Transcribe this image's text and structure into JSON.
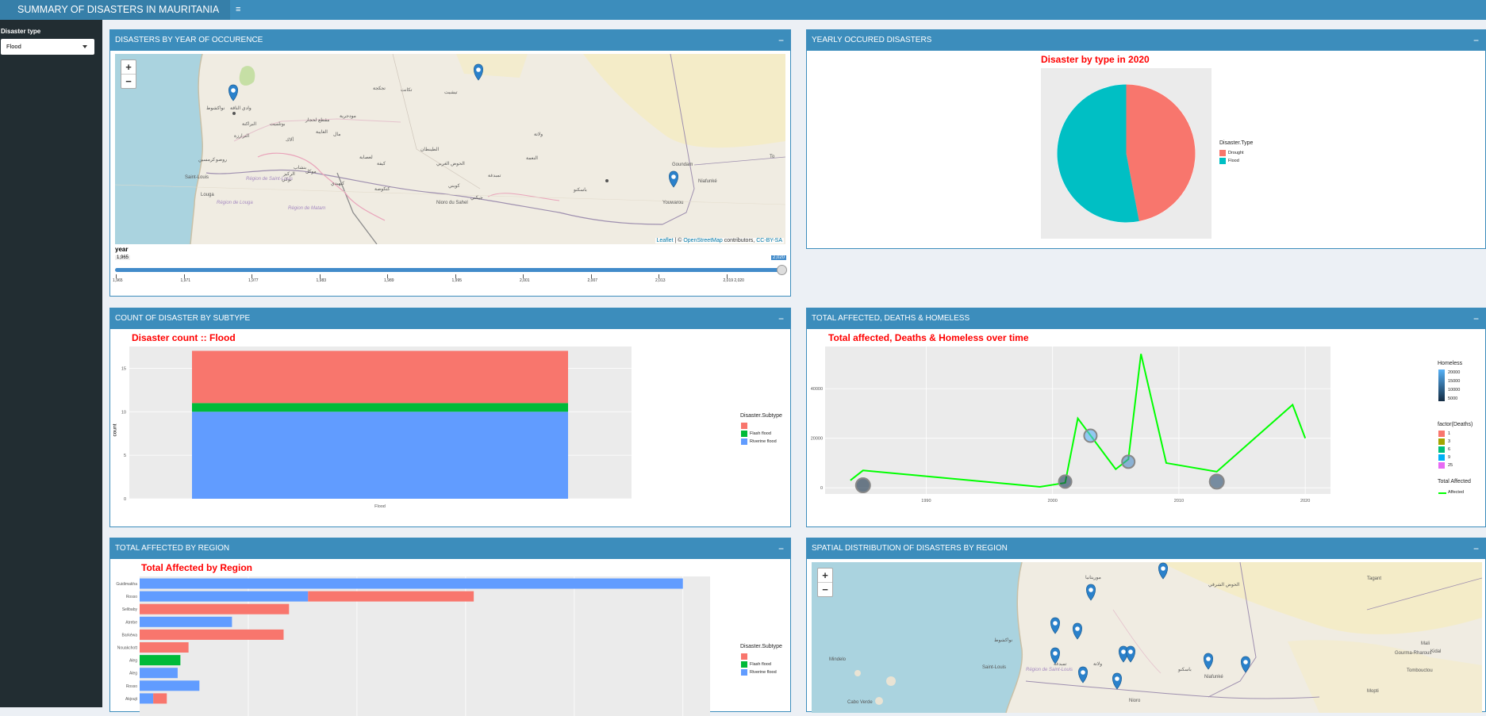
{
  "header": {
    "title": "SUMMARY OF DISASTERS IN MAURITANIA",
    "menu_icon": "≡"
  },
  "sidebar": {
    "filter_label": "Disaster type",
    "filter_value": "Flood"
  },
  "boxes": {
    "map_year": "DISASTERS BY YEAR OF OCCURENCE",
    "yearly": "YEARLY OCCURED DISASTERS",
    "subtype": "COUNT OF DISASTER BY SUBTYPE",
    "affected": "TOTAL AFFECTED, DEATHS & HOMELESS",
    "region": "TOTAL AFFECTED BY REGION",
    "spatial": "SPATIAL DISTRIBUTION OF DISASTERS BY REGION",
    "minimize": "−"
  },
  "map_year": {
    "zoom_in": "+",
    "zoom_out": "−",
    "attribution_leaflet": "Leaflet",
    "attribution_sep": " | © ",
    "attribution_osm": "OpenStreetMap",
    "attribution_rest": " contributors, ",
    "attribution_cc": "CC-BY-SA",
    "places": [
      "نواكشوط",
      "وادي الناقة",
      "البراكنة",
      "الترارزة",
      "مقطع لحجار",
      "ألاك",
      "كرمسين",
      "روصو",
      "بوتلميت",
      "الغايبة",
      "بنشاب",
      "تيشيت",
      "تكانت",
      "تجكجة",
      "مودجرية",
      "الركيز",
      "مال",
      "موكل",
      "بوكي",
      "كيهيدي",
      "لعصابة",
      "كيفة",
      "كنكوصة",
      "الطينطان",
      "الحوض الغربي",
      "تمبدغة",
      "جيكني",
      "كوبني",
      "النعمة",
      "ولاتة",
      "باسكنو",
      "Saint-Louis",
      "Région de Saint-Louis",
      "Louga",
      "Région de Louga",
      "Région de Matam",
      "Goundam",
      "Niafunké",
      "Youwarou",
      "Nioro du Sahel",
      "To"
    ],
    "slider_label": "year",
    "slider_min": "1,965",
    "slider_max": "2,020",
    "slider_ticks": [
      "1,965",
      "1,971",
      "1,977",
      "1,983",
      "1,989",
      "1,995",
      "2,001",
      "2,007",
      "2,013",
      "2,019 2,020"
    ]
  },
  "pie": {
    "title": "Disaster by type in 2020",
    "legend_title": "Disaster.Type",
    "legend_items": [
      "Drought",
      "Flood"
    ]
  },
  "subtype_chart": {
    "title": "Disaster count :: Flood",
    "ylabel": "count",
    "xtick": "Flood",
    "yticks": [
      "0",
      "5",
      "10",
      "15"
    ],
    "legend_title": "Disaster.Subtype",
    "legend_items": [
      "",
      "Flash flood",
      "Riverine flood"
    ]
  },
  "line_chart": {
    "title": "Total affected, Deaths & Homeless over time",
    "yticks": [
      "0",
      "20000",
      "40000"
    ],
    "xticks": [
      "1990",
      "2000",
      "2010",
      "2020"
    ],
    "legend_homeless_title": "Homeless",
    "legend_homeless_items": [
      "20000",
      "15000",
      "10000",
      "5000"
    ],
    "legend_deaths_title": "factor(Deaths)",
    "legend_deaths_items": [
      "1",
      "3",
      "6",
      "9",
      "25"
    ],
    "legend_affected_title": "Total Affected",
    "legend_affected_item": "Affected"
  },
  "region_chart": {
    "title": "Total Affected by Region",
    "legend_title": "Disaster.Subtype",
    "legend_items": [
      "",
      "Flash flood",
      "Riverine flood"
    ]
  },
  "spatial_map": {
    "zoom_in": "+",
    "zoom_out": "−",
    "places": [
      "موريتانيا",
      "Tagant",
      "Mali",
      "Gourma-Rharous",
      "Tombouctou",
      "Mopti",
      "Kidal",
      "Nioro",
      "Cabo Verde",
      "Mindelo",
      "Saint-Louis",
      "Région de Saint-Louis",
      "الحوض الشرقي",
      "نواكشوط",
      "ولاتة",
      "تمبدغة",
      "باسكنو",
      "Niafunké"
    ]
  },
  "chart_data": [
    {
      "type": "pie",
      "title": "Disaster by type in 2020",
      "legend_title": "Disaster.Type",
      "labels": [
        "Drought",
        "Flood"
      ],
      "values": [
        47,
        53
      ],
      "colors": [
        "#f8766d",
        "#00bfc4"
      ]
    },
    {
      "type": "bar",
      "title": "Disaster count :: Flood",
      "ylabel": "count",
      "categories": [
        "Flood"
      ],
      "ylim": [
        0,
        17.5
      ],
      "series": [
        {
          "name": "Riverine flood",
          "values": [
            10
          ],
          "color": "#619cff"
        },
        {
          "name": "Flash flood",
          "values": [
            1
          ],
          "color": "#00ba38"
        },
        {
          "values": [
            6
          ],
          "color": "#f8766d"
        }
      ]
    },
    {
      "type": "line",
      "title": "Total affected, Deaths & Homeless over time",
      "xlim": [
        1982,
        2022
      ],
      "ylim": [
        -2500,
        57000
      ],
      "series": [
        {
          "name": "Affected",
          "color": "#00ff00",
          "x": [
            1984,
            1985,
            1999,
            2001,
            2002,
            2005,
            2006,
            2007,
            2009,
            2013,
            2019,
            2020
          ],
          "y": [
            3000,
            7000,
            400,
            2000,
            28000,
            7500,
            11500,
            54000,
            10000,
            6500,
            33500,
            20000
          ]
        }
      ],
      "points": [
        {
          "x": 1985,
          "y": 1000,
          "size": 9,
          "fill": "#132b43"
        },
        {
          "x": 2001,
          "y": 2500,
          "size": 8,
          "fill": "#1d3a59"
        },
        {
          "x": 2003,
          "y": 21000,
          "size": 8,
          "fill": "#56b1f7"
        },
        {
          "x": 2006,
          "y": 10500,
          "size": 8,
          "fill": "#4a8ac4"
        },
        {
          "x": 2013,
          "y": 2500,
          "size": 9,
          "fill": "#2a4d6e"
        }
      ]
    },
    {
      "type": "bar",
      "title": "Total Affected by Region",
      "orientation": "horizontal",
      "categories": [
        "Guidimakha",
        "Rosso",
        "Selibaby",
        "Atrebe",
        "Barkéwa",
        "Nouakchott",
        "Aleg",
        "Aleg",
        "Rosso",
        "Akjoujt"
      ],
      "xlim": [
        0,
        105
      ],
      "series": [
        {
          "name": "Riverine flood",
          "values": [
            100,
            31,
            0,
            17,
            0,
            0,
            0,
            7,
            11,
            2.5
          ],
          "color": "#619cff"
        },
        {
          "name": "Flash flood",
          "values": [
            0,
            0,
            0,
            0,
            0,
            0,
            7.5,
            0,
            0,
            0
          ],
          "color": "#00ba38"
        },
        {
          "values": [
            0,
            30.5,
            27.5,
            0,
            26.5,
            9,
            0,
            0,
            0,
            2.5
          ],
          "color": "#f8766d"
        }
      ]
    }
  ]
}
